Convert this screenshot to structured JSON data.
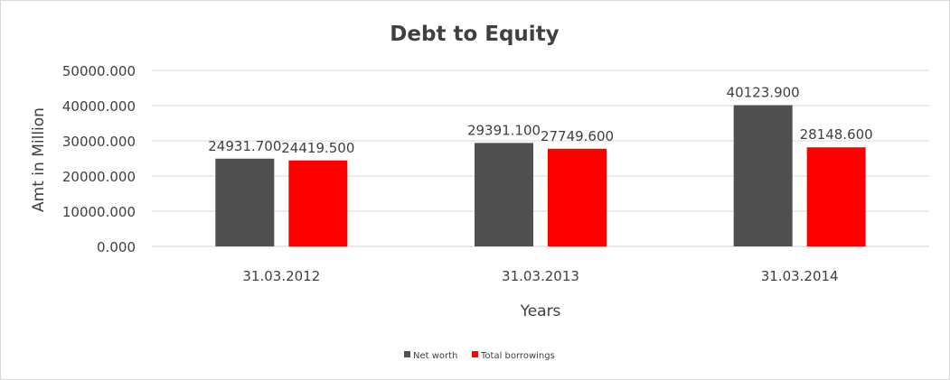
{
  "chart_data": {
    "type": "bar",
    "title": "Debt to Equity",
    "xlabel": "Years",
    "ylabel": "Amt in Million",
    "categories": [
      "31.03.2012",
      "31.03.2013",
      "31.03.2014"
    ],
    "series": [
      {
        "name": "Net worth",
        "color": "#505050",
        "values": [
          24931.7,
          29391.1,
          40123.9
        ]
      },
      {
        "name": "Total borrowings",
        "color": "#ff0000",
        "values": [
          24419.5,
          27749.6,
          28148.6
        ]
      }
    ],
    "ylim": [
      0,
      50000
    ],
    "yticks": [
      "0.000",
      "10000.000",
      "20000.000",
      "30000.000",
      "40000.000",
      "50000.000"
    ],
    "data_labels": [
      [
        "24931.700",
        "29391.100",
        "40123.900"
      ],
      [
        "24419.500",
        "27749.600",
        "28148.600"
      ]
    ],
    "grid": true,
    "legend_position": "bottom"
  }
}
